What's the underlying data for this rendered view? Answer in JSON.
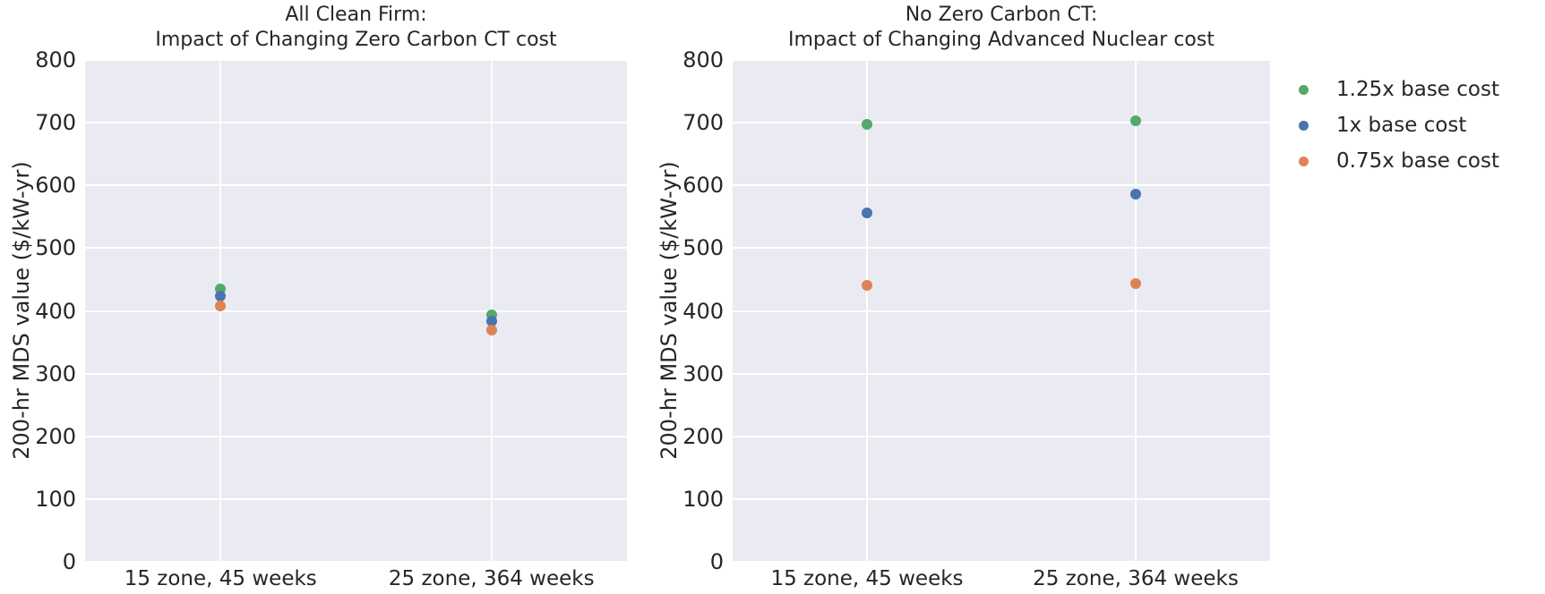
{
  "style": {
    "plot_background": "#eaeaf2",
    "grid_color": "#ffffff",
    "text_color": "#262626"
  },
  "legend": {
    "items": [
      {
        "label": "1.25x base cost",
        "color": "#55a868"
      },
      {
        "label": "1x base cost",
        "color": "#4c72b0"
      },
      {
        "label": "0.75x base cost",
        "color": "#dd8452"
      }
    ]
  },
  "chart_data": [
    {
      "type": "scatter",
      "title_line1": "All Clean Firm:",
      "title_line2": "Impact of Changing Zero Carbon CT cost",
      "ylabel": "200-hr MDS value ($/kW-yr)",
      "xlabel": "",
      "ylim": [
        0,
        800
      ],
      "yticks": [
        0,
        100,
        200,
        300,
        400,
        500,
        600,
        700,
        800
      ],
      "grid": true,
      "legend_position": "outside-right",
      "categories": [
        "15 zone, 45 weeks",
        "25 zone, 364 weeks"
      ],
      "series": [
        {
          "name": "1.25x base cost",
          "color": "#55a868",
          "values": [
            435,
            394
          ]
        },
        {
          "name": "1x base cost",
          "color": "#4c72b0",
          "values": [
            423,
            383
          ]
        },
        {
          "name": "0.75x base cost",
          "color": "#dd8452",
          "values": [
            408,
            370
          ]
        }
      ]
    },
    {
      "type": "scatter",
      "title_line1": "No Zero Carbon CT:",
      "title_line2": "Impact of Changing Advanced Nuclear cost",
      "ylabel": "200-hr MDS value ($/kW-yr)",
      "xlabel": "",
      "ylim": [
        0,
        800
      ],
      "yticks": [
        0,
        100,
        200,
        300,
        400,
        500,
        600,
        700,
        800
      ],
      "grid": true,
      "legend_position": "outside-right",
      "categories": [
        "15 zone, 45 weeks",
        "25 zone, 364 weeks"
      ],
      "series": [
        {
          "name": "1.25x base cost",
          "color": "#55a868",
          "values": [
            698,
            703
          ]
        },
        {
          "name": "1x base cost",
          "color": "#4c72b0",
          "values": [
            556,
            586
          ]
        },
        {
          "name": "0.75x base cost",
          "color": "#dd8452",
          "values": [
            440,
            443
          ]
        }
      ]
    }
  ]
}
